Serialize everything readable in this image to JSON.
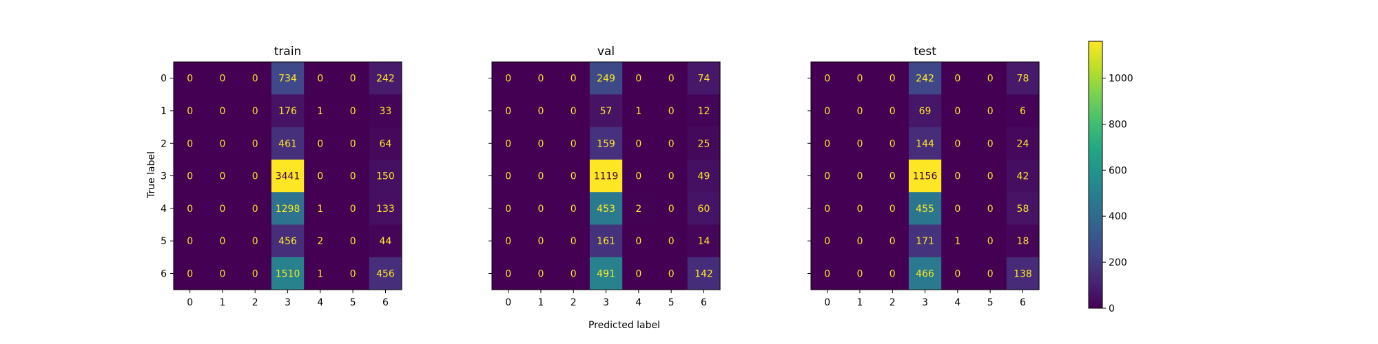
{
  "chart_data": {
    "type": "heatmap",
    "title": "",
    "xlabel": "Predicted label",
    "ylabel": "True label",
    "classes": [
      "0",
      "1",
      "2",
      "3",
      "4",
      "5",
      "6"
    ],
    "colormap": "viridis",
    "colorbar": {
      "min": 0,
      "max": 1160,
      "ticks": [
        0,
        200,
        400,
        600,
        800,
        1000
      ],
      "tick_labels": [
        "0",
        "200",
        "400",
        "600",
        "800",
        "1000"
      ]
    },
    "panels": [
      {
        "name": "train",
        "matrix": [
          [
            0,
            0,
            0,
            734,
            0,
            0,
            242
          ],
          [
            0,
            0,
            0,
            176,
            1,
            0,
            33
          ],
          [
            0,
            0,
            0,
            461,
            0,
            0,
            64
          ],
          [
            0,
            0,
            0,
            3441,
            0,
            0,
            150
          ],
          [
            0,
            0,
            0,
            1298,
            1,
            0,
            133
          ],
          [
            0,
            0,
            0,
            456,
            2,
            0,
            44
          ],
          [
            0,
            0,
            0,
            1510,
            1,
            0,
            456
          ]
        ]
      },
      {
        "name": "val",
        "matrix": [
          [
            0,
            0,
            0,
            249,
            0,
            0,
            74
          ],
          [
            0,
            0,
            0,
            57,
            1,
            0,
            12
          ],
          [
            0,
            0,
            0,
            159,
            0,
            0,
            25
          ],
          [
            0,
            0,
            0,
            1119,
            0,
            0,
            49
          ],
          [
            0,
            0,
            0,
            453,
            2,
            0,
            60
          ],
          [
            0,
            0,
            0,
            161,
            0,
            0,
            14
          ],
          [
            0,
            0,
            0,
            491,
            0,
            0,
            142
          ]
        ]
      },
      {
        "name": "test",
        "matrix": [
          [
            0,
            0,
            0,
            242,
            0,
            0,
            78
          ],
          [
            0,
            0,
            0,
            69,
            0,
            0,
            6
          ],
          [
            0,
            0,
            0,
            144,
            0,
            0,
            24
          ],
          [
            0,
            0,
            0,
            1156,
            0,
            0,
            42
          ],
          [
            0,
            0,
            0,
            455,
            0,
            0,
            58
          ],
          [
            0,
            0,
            0,
            171,
            1,
            0,
            18
          ],
          [
            0,
            0,
            0,
            466,
            0,
            0,
            138
          ]
        ]
      }
    ]
  }
}
